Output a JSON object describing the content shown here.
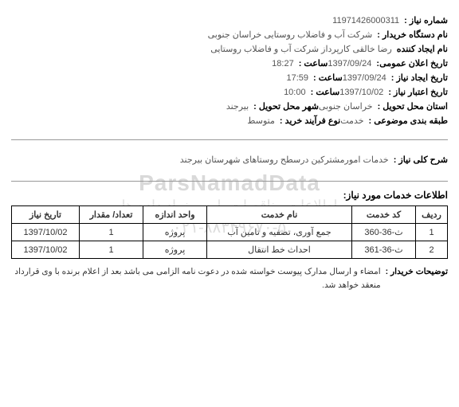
{
  "header": {
    "need_no_label": "شماره نیاز :",
    "need_no": "11971426000311",
    "buyer_org_label": "نام دستگاه خریدار :",
    "buyer_org": "شرکت آب و فاضلاب روستایی خراسان جنوبی",
    "creator_label": "نام ایجاد کننده",
    "creator": "رضا  خالقی کارپرداز شرکت آب و فاضلاب روستایی",
    "public_announce_label": "تاریخ اعلان عمومی:",
    "public_announce_date": "1397/09/24",
    "public_announce_time_label": "ساعت :",
    "public_announce_time": "18:27",
    "need_create_label": "تاریخ ایجاد نیاز :",
    "need_create_date": "1397/09/24",
    "need_create_time_label": "ساعت :",
    "need_create_time": "17:59",
    "need_valid_label": "تاریخ اعتبار نیاز :",
    "need_valid_date": "1397/10/02",
    "need_valid_time_label": "ساعت :",
    "need_valid_time": "10:00",
    "deliver_prov_label": "استان محل تحویل :",
    "deliver_prov": "خراسان جنوبی",
    "deliver_city_label": "شهر محل تحویل :",
    "deliver_city": "بیرجند",
    "subject_cat_label": "طبقه بندی موضوعی :",
    "subject_cat": "خدمت",
    "process_label": "نوع فرآیند خرید :",
    "process": "متوسط"
  },
  "description": {
    "label": "شرح کلی نیاز :",
    "text": "خدمات امورمشترکین درسطح روستاهای شهرستان بیرجند"
  },
  "services": {
    "title": "اطلاعات خدمات مورد نیاز:",
    "columns": {
      "idx": "ردیف",
      "code": "کد خدمت",
      "name": "نام خدمت",
      "unit": "واحد اندازه",
      "qty": "تعداد/ مقدار",
      "date": "تاریخ نیاز"
    },
    "rows": [
      {
        "idx": "1",
        "code": "ث-36-360",
        "name": "جمع آوری، تصفیه و تامین آب",
        "unit": "پروژه",
        "qty": "1",
        "date": "1397/10/02"
      },
      {
        "idx": "2",
        "code": "ث-36-361",
        "name": "احداث خط انتقال",
        "unit": "پروژه",
        "qty": "1",
        "date": "1397/10/02"
      }
    ]
  },
  "buyer_note": {
    "label": "توضیحات خریدار :",
    "text": "امضاء و ارسال مدارک پیوست خواسته شده در دعوت نامه الزامی می باشد بعد از اعلام برنده با وی قرارداد منعقد خواهد شد."
  },
  "watermark": {
    "main": "ParsNamadData",
    "sub": "اطلاعات مناقصات پارس نماد داده ها",
    "phone": "۰۲۱-۸۸۳۴۹۶۷۰-۵"
  },
  "style": {
    "border_color": "#000000",
    "text_color": "#333333",
    "label_color": "#000000",
    "wm_color": "rgba(120,120,120,0.25)",
    "font_size_body": 11,
    "font_size_title": 12
  }
}
